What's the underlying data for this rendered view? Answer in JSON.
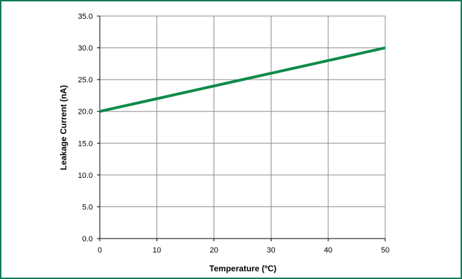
{
  "chart_data": {
    "type": "line",
    "title": "",
    "xlabel": "Temperature (ºC)",
    "ylabel": "Leakage Current (nA)",
    "xlim": [
      0,
      50
    ],
    "ylim": [
      0,
      35
    ],
    "x_ticks": [
      "0",
      "10",
      "20",
      "30",
      "40",
      "50"
    ],
    "y_ticks": [
      "0.0",
      "5.0",
      "10.0",
      "15.0",
      "20.0",
      "25.0",
      "30.0",
      "35.0"
    ],
    "grid": true,
    "legend": "none",
    "series": [
      {
        "x": [
          0,
          10,
          20,
          30,
          40,
          50
        ],
        "values": [
          20,
          22,
          24,
          26,
          28,
          30
        ],
        "color": "#0f8a4a"
      }
    ]
  },
  "colors": {
    "frame_border": "#0f7a5a",
    "grid": "#8c8c8c",
    "series": "#0f8a4a"
  }
}
